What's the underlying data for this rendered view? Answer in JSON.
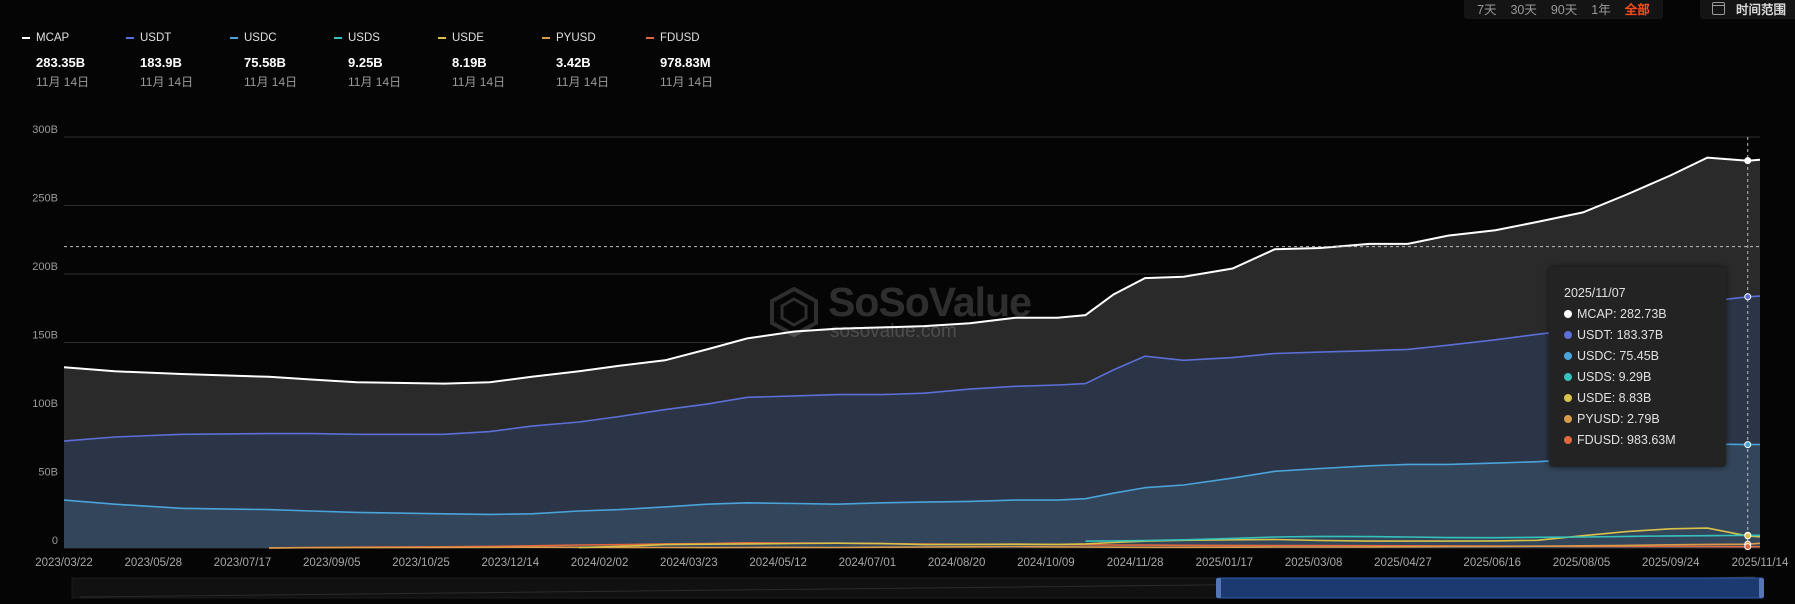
{
  "legend": [
    {
      "name": "MCAP",
      "value": "283.35B",
      "date": "11月 14日"
    },
    {
      "name": "USDT",
      "value": "183.9B",
      "date": "11月 14日"
    },
    {
      "name": "USDC",
      "value": "75.58B",
      "date": "11月 14日"
    },
    {
      "name": "USDS",
      "value": "9.25B",
      "date": "11月 14日"
    },
    {
      "name": "USDE",
      "value": "8.19B",
      "date": "11月 14日"
    },
    {
      "name": "PYUSD",
      "value": "3.42B",
      "date": "11月 14日"
    },
    {
      "name": "FDUSD",
      "value": "978.83M",
      "date": "11月 14日"
    }
  ],
  "range_buttons": [
    {
      "label": "7天",
      "active": false
    },
    {
      "label": "30天",
      "active": false
    },
    {
      "label": "90天",
      "active": false
    },
    {
      "label": "1年",
      "active": false
    },
    {
      "label": "全部",
      "active": true
    }
  ],
  "time_range_label": "时间范围",
  "watermark": {
    "brand": "SoSoValue",
    "domain": "sosovalue.com"
  },
  "tooltip": {
    "date": "2025/11/07",
    "rows": [
      {
        "label": "MCAP: 282.73B",
        "color": "#ffffff"
      },
      {
        "label": "USDT: 183.37B",
        "color": "#5b6fd6"
      },
      {
        "label": "USDC: 75.45B",
        "color": "#4aa3d9"
      },
      {
        "label": "USDS: 9.29B",
        "color": "#35c2bd"
      },
      {
        "label": "USDE: 8.83B",
        "color": "#d8c24a"
      },
      {
        "label": "PYUSD: 2.79B",
        "color": "#d99a4a"
      },
      {
        "label": "FDUSD: 983.63M",
        "color": "#e0683f"
      }
    ]
  },
  "chart_data": {
    "type": "area",
    "x_ticks": [
      "2023/03/22",
      "2023/05/28",
      "2023/07/17",
      "2023/09/05",
      "2023/10/25",
      "2023/12/14",
      "2024/02/02",
      "2024/03/23",
      "2024/05/12",
      "2024/07/01",
      "2024/08/20",
      "2024/10/09",
      "2024/11/28",
      "2025/01/17",
      "2025/03/08",
      "2025/04/27",
      "2025/06/16",
      "2025/08/05",
      "2025/09/24",
      "2025/11/14"
    ],
    "y_ticks": [
      "0",
      "50B",
      "100B",
      "150B",
      "200B",
      "250B",
      "300B"
    ],
    "ylim": [
      0,
      300
    ],
    "unit": "B",
    "grid": true,
    "x": [
      "2023-03-22",
      "2023-04-20",
      "2023-05-28",
      "2023-07-17",
      "2023-08-10",
      "2023-09-05",
      "2023-10-25",
      "2023-11-20",
      "2023-12-14",
      "2024-01-10",
      "2024-02-02",
      "2024-02-28",
      "2024-03-23",
      "2024-04-15",
      "2024-05-12",
      "2024-06-05",
      "2024-07-01",
      "2024-07-25",
      "2024-08-20",
      "2024-09-15",
      "2024-10-09",
      "2024-10-25",
      "2024-11-10",
      "2024-11-28",
      "2024-12-20",
      "2025-01-17",
      "2025-02-10",
      "2025-03-08",
      "2025-04-05",
      "2025-04-27",
      "2025-05-20",
      "2025-06-16",
      "2025-07-10",
      "2025-08-05",
      "2025-08-30",
      "2025-09-24",
      "2025-10-15",
      "2025-11-07",
      "2025-11-14"
    ],
    "series": [
      {
        "name": "MCAP",
        "color": "#ffffff",
        "fill": "#2a2a2a",
        "values": [
          132,
          129,
          127,
          125,
          123,
          121,
          120,
          121,
          125,
          129,
          133,
          137,
          145,
          153,
          158,
          160,
          161,
          162,
          164,
          168,
          168,
          170,
          185,
          197,
          198,
          204,
          218,
          219,
          222,
          222,
          228,
          232,
          238,
          245,
          258,
          272,
          285,
          282.73,
          283.35
        ]
      },
      {
        "name": "USDT",
        "color": "#5b6fd6",
        "fill": "#2c3447",
        "values": [
          78,
          81,
          83,
          83.5,
          83.5,
          83,
          83,
          85,
          89,
          92,
          96,
          101,
          105,
          110,
          111,
          112,
          112,
          113,
          116,
          118,
          119,
          120,
          130,
          140,
          137,
          139,
          142,
          143,
          144,
          145,
          148,
          152,
          156,
          160,
          165,
          173,
          180,
          183.37,
          183.9
        ]
      },
      {
        "name": "USDC",
        "color": "#4aa3d9",
        "fill": "#33455a",
        "values": [
          35,
          32,
          29,
          28,
          27,
          26,
          25,
          24.5,
          25,
          27,
          28,
          30,
          32,
          33,
          32.5,
          32,
          33,
          33.5,
          34,
          35,
          35,
          36,
          40,
          44,
          46,
          51,
          56,
          58,
          60,
          61,
          61,
          62,
          63,
          65,
          68,
          73,
          76,
          75.45,
          75.58
        ]
      },
      {
        "name": "USDS",
        "color": "#35c2bd",
        "fill": "#36486a",
        "values": [
          null,
          null,
          null,
          null,
          null,
          null,
          null,
          null,
          null,
          null,
          null,
          null,
          null,
          null,
          null,
          null,
          null,
          null,
          null,
          null,
          null,
          5,
          5.2,
          5.5,
          6,
          7,
          8,
          8.5,
          8.3,
          8,
          7.6,
          7.5,
          7.8,
          8,
          8.5,
          8.8,
          9,
          9.29,
          9.25
        ]
      },
      {
        "name": "USDE",
        "color": "#d8c24a",
        "fill": "#3b4a6a",
        "values": [
          null,
          null,
          null,
          null,
          null,
          null,
          null,
          null,
          null,
          0.3,
          1.2,
          2.5,
          2.8,
          3,
          3.3,
          3.5,
          3.2,
          2.5,
          2.6,
          2.8,
          2.6,
          3,
          4,
          5,
          5.6,
          6,
          6.2,
          5.5,
          5,
          5,
          5,
          5.2,
          5.6,
          9,
          12,
          14,
          14.5,
          8.83,
          8.19
        ]
      },
      {
        "name": "PYUSD",
        "color": "#d99a4a",
        "fill": "#3b4a6a",
        "values": [
          null,
          null,
          null,
          0.05,
          0.2,
          0.3,
          0.4,
          0.5,
          0.6,
          0.5,
          0.4,
          0.35,
          0.3,
          0.4,
          0.45,
          0.4,
          0.6,
          0.7,
          0.9,
          1,
          0.8,
          0.7,
          0.6,
          0.5,
          0.5,
          0.6,
          0.7,
          0.75,
          0.8,
          0.9,
          1,
          1.1,
          1.3,
          1.6,
          1.9,
          2.3,
          2.6,
          2.79,
          3.42
        ]
      },
      {
        "name": "FDUSD",
        "color": "#e0683f",
        "fill": "#3b4a6a",
        "values": [
          null,
          null,
          null,
          0.1,
          0.3,
          0.6,
          0.9,
          1.2,
          1.6,
          2.2,
          2.4,
          3,
          3.2,
          3.8,
          3.6,
          3.5,
          3.2,
          2.9,
          2.7,
          2.8,
          2.5,
          2.4,
          2.2,
          2.1,
          2,
          1.9,
          1.8,
          1.8,
          1.7,
          1.6,
          1.5,
          1.4,
          1.3,
          1.2,
          1.1,
          1.1,
          1,
          0.98363,
          0.97883
        ]
      }
    ],
    "hover": {
      "x": "2025-11-07",
      "y": 220
    }
  }
}
